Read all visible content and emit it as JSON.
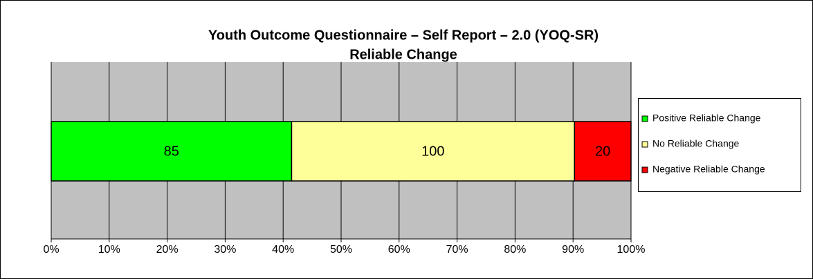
{
  "chart_data": {
    "type": "bar",
    "orientation": "horizontal",
    "stacking": "percent",
    "title": "Youth Outcome Questionnaire – Self Report – 2.0 (YOQ-SR)",
    "subtitle": "Reliable Change",
    "series": [
      {
        "name": "Positive Reliable Change",
        "color": "#00ff00",
        "values": [
          85
        ]
      },
      {
        "name": "No Reliable Change",
        "color": "#ffff99",
        "values": [
          100
        ]
      },
      {
        "name": "Negative Reliable Change",
        "color": "#ff0000",
        "values": [
          20
        ]
      }
    ],
    "xlim": [
      0,
      100
    ],
    "xticks": [
      {
        "value": 0,
        "label": "0%"
      },
      {
        "value": 10,
        "label": "10%"
      },
      {
        "value": 20,
        "label": "20%"
      },
      {
        "value": 30,
        "label": "30%"
      },
      {
        "value": 40,
        "label": "40%"
      },
      {
        "value": 50,
        "label": "50%"
      },
      {
        "value": 60,
        "label": "60%"
      },
      {
        "value": 70,
        "label": "70%"
      },
      {
        "value": 80,
        "label": "80%"
      },
      {
        "value": 90,
        "label": "90%"
      },
      {
        "value": 100,
        "label": "100%"
      }
    ],
    "grid": true,
    "plot_background": "#c0c0c0",
    "legend": "right"
  }
}
